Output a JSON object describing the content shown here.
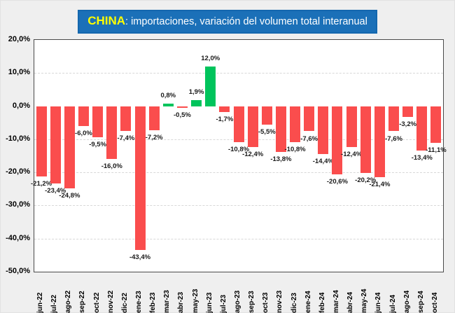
{
  "title": {
    "highlight": "CHINA",
    "rest": ": importaciones, variación del volumen total interanual"
  },
  "colors": {
    "positive_bar": "#00C45C",
    "negative_bar": "#FA4D4D",
    "title_background": "#1B70B8",
    "title_border": "#1467AE",
    "title_text": "#FFFFFF",
    "title_highlight": "#FFFF00",
    "page_background": "#EFEFEF",
    "plot_border": "#4A4A4A",
    "gridline": "#D8D8D8",
    "data_label": "#1A1A1A"
  },
  "chart_data": {
    "type": "bar",
    "title": "CHINA: importaciones, variación del volumen total interanual",
    "xlabel": "",
    "ylabel": "",
    "ylim": [
      -50,
      20
    ],
    "grid": "horizontal dashed",
    "legend": "none",
    "categories": [
      "jun-22",
      "jul-22",
      "ago-22",
      "sep-22",
      "oct-22",
      "nov-22",
      "dic-22",
      "ene-23",
      "feb-23",
      "mar-23",
      "abr-23",
      "may-23",
      "jun-23",
      "jul-23",
      "ago-23",
      "sep-23",
      "oct-23",
      "nov-23",
      "dic-23",
      "ene-24",
      "feb-24",
      "mar-24",
      "abr-24",
      "may-24",
      "jun-24",
      "jul-24",
      "ago-24",
      "sep-24",
      "oct-24"
    ],
    "values": [
      -21.2,
      -23.4,
      -24.8,
      -6.0,
      -9.5,
      -16.0,
      -7.4,
      -43.4,
      -7.2,
      0.8,
      -0.5,
      1.9,
      12.0,
      -1.7,
      -10.8,
      -12.4,
      -5.5,
      -13.8,
      -10.8,
      -7.6,
      -14.4,
      -20.6,
      -12.4,
      -20.2,
      -21.4,
      -7.6,
      -3.2,
      -13.4,
      -11.1
    ],
    "data_labels": [
      "-21,2%",
      "-23,4%",
      "-24,8%",
      "-6,0%",
      "-9,5%",
      "-16,0%",
      "-7,4%",
      "-43,4%",
      "-7,2%",
      "0,8%",
      "-0,5%",
      "1,9%",
      "12,0%",
      "-1,7%",
      "-10,8%",
      "-12,4%",
      "-5,5%",
      "-13,8%",
      "-10,8%",
      "-7,6%",
      "-14,4%",
      "-20,6%",
      "-12,4%",
      "-20,2%",
      "-21,4%",
      "-7,6%",
      "-3,2%",
      "-13,4%",
      "-11,1%"
    ],
    "y_ticks": [
      20,
      10,
      0,
      -10,
      -20,
      -30,
      -40,
      -50
    ],
    "y_tick_labels": [
      "20,0%",
      "10,0%",
      "0,0%",
      "-10,0%",
      "-20,0%",
      "-30,0%",
      "-40,0%",
      "-50,0%"
    ],
    "color_rule": "negative values red, positive values green"
  }
}
